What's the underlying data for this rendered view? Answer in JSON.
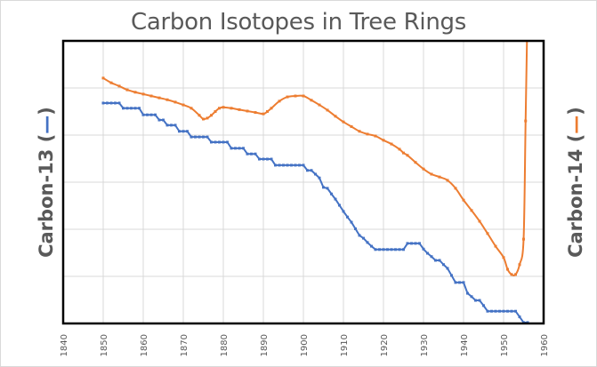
{
  "chart_data": {
    "type": "line",
    "title": "Carbon Isotopes in Tree Rings",
    "xlabel": "",
    "ylabel_left": "Carbon-13 (",
    "ylabel_left_swatch": "—",
    "ylabel_left_close": ")",
    "ylabel_right": "Carbon-14 (",
    "ylabel_right_swatch": "—",
    "ylabel_right_close": ")",
    "xlim": [
      1840,
      1960
    ],
    "ylim": [
      0,
      6
    ],
    "y_units_note": "relative (no y tick labels shown); 1 unit = 1 gridline",
    "x_ticks": [
      "1840",
      "1850",
      "1860",
      "1870",
      "1880",
      "1890",
      "1900",
      "1910",
      "1920",
      "1930",
      "1940",
      "1950",
      "1960"
    ],
    "grid": true,
    "legend": "none (series identified by colored dashes in axis titles)",
    "series": [
      {
        "name": "Carbon-13",
        "color": "#4472c4",
        "axis": "left",
        "style": "stepped line with dot markers",
        "x": [
          1850,
          1851,
          1852,
          1853,
          1854,
          1855,
          1856,
          1857,
          1858,
          1859,
          1860,
          1861,
          1862,
          1863,
          1864,
          1865,
          1866,
          1867,
          1868,
          1869,
          1870,
          1871,
          1872,
          1873,
          1874,
          1875,
          1876,
          1877,
          1878,
          1879,
          1880,
          1881,
          1882,
          1883,
          1884,
          1885,
          1886,
          1887,
          1888,
          1889,
          1890,
          1891,
          1892,
          1893,
          1894,
          1895,
          1896,
          1897,
          1898,
          1899,
          1900,
          1901,
          1902,
          1903,
          1904,
          1905,
          1906,
          1907,
          1908,
          1909,
          1910,
          1911,
          1912,
          1913,
          1914,
          1915,
          1916,
          1917,
          1918,
          1919,
          1920,
          1921,
          1922,
          1923,
          1924,
          1925,
          1926,
          1927,
          1928,
          1929,
          1930,
          1931,
          1932,
          1933,
          1934,
          1935,
          1936,
          1937,
          1938,
          1939,
          1940,
          1941,
          1942,
          1943,
          1944,
          1945,
          1946,
          1947,
          1948,
          1949,
          1950,
          1951,
          1952,
          1953,
          1954,
          1955,
          1956
        ],
        "values": [
          4.68,
          4.68,
          4.68,
          4.68,
          4.68,
          4.57,
          4.57,
          4.57,
          4.57,
          4.57,
          4.43,
          4.43,
          4.43,
          4.43,
          4.32,
          4.32,
          4.21,
          4.21,
          4.21,
          4.08,
          4.08,
          4.08,
          3.96,
          3.96,
          3.96,
          3.96,
          3.96,
          3.85,
          3.85,
          3.85,
          3.85,
          3.85,
          3.72,
          3.72,
          3.72,
          3.72,
          3.6,
          3.6,
          3.6,
          3.49,
          3.49,
          3.49,
          3.49,
          3.36,
          3.36,
          3.36,
          3.36,
          3.36,
          3.36,
          3.36,
          3.36,
          3.25,
          3.25,
          3.17,
          3.09,
          2.89,
          2.87,
          2.75,
          2.64,
          2.51,
          2.38,
          2.26,
          2.15,
          2.01,
          1.87,
          1.81,
          1.72,
          1.64,
          1.57,
          1.57,
          1.57,
          1.57,
          1.57,
          1.57,
          1.57,
          1.57,
          1.7,
          1.7,
          1.7,
          1.7,
          1.58,
          1.49,
          1.42,
          1.34,
          1.34,
          1.25,
          1.17,
          1.02,
          0.87,
          0.87,
          0.87,
          0.64,
          0.57,
          0.49,
          0.49,
          0.38,
          0.26,
          0.26,
          0.26,
          0.26,
          0.26,
          0.26,
          0.26,
          0.26,
          0.14,
          0.02,
          0.02
        ]
      },
      {
        "name": "Carbon-14",
        "color": "#ed7d31",
        "axis": "right",
        "style": "smooth line with dot markers",
        "x": [
          1850,
          1852,
          1854,
          1856,
          1858,
          1860,
          1862,
          1864,
          1866,
          1868,
          1870,
          1872,
          1874,
          1875,
          1876,
          1877,
          1878,
          1879,
          1880,
          1882,
          1884,
          1886,
          1888,
          1890,
          1891,
          1892,
          1894,
          1896,
          1898,
          1900,
          1902,
          1904,
          1906,
          1908,
          1910,
          1912,
          1914,
          1916,
          1918,
          1920,
          1922,
          1924,
          1925,
          1926,
          1928,
          1930,
          1932,
          1934,
          1936,
          1938,
          1940,
          1942,
          1944,
          1946,
          1948,
          1950,
          1951,
          1952,
          1953,
          1954,
          1955,
          1955.5,
          1956
        ],
        "values": [
          5.21,
          5.11,
          5.04,
          4.96,
          4.91,
          4.87,
          4.83,
          4.79,
          4.75,
          4.7,
          4.64,
          4.57,
          4.42,
          4.34,
          4.36,
          4.42,
          4.5,
          4.57,
          4.59,
          4.57,
          4.54,
          4.51,
          4.48,
          4.45,
          4.5,
          4.57,
          4.72,
          4.81,
          4.83,
          4.83,
          4.74,
          4.64,
          4.53,
          4.4,
          4.28,
          4.18,
          4.08,
          4.02,
          3.98,
          3.89,
          3.81,
          3.7,
          3.62,
          3.57,
          3.42,
          3.28,
          3.17,
          3.11,
          3.04,
          2.87,
          2.62,
          2.4,
          2.17,
          1.91,
          1.64,
          1.4,
          1.15,
          1.04,
          1.04,
          1.25,
          1.79,
          4.3,
          6.8
        ]
      }
    ]
  }
}
